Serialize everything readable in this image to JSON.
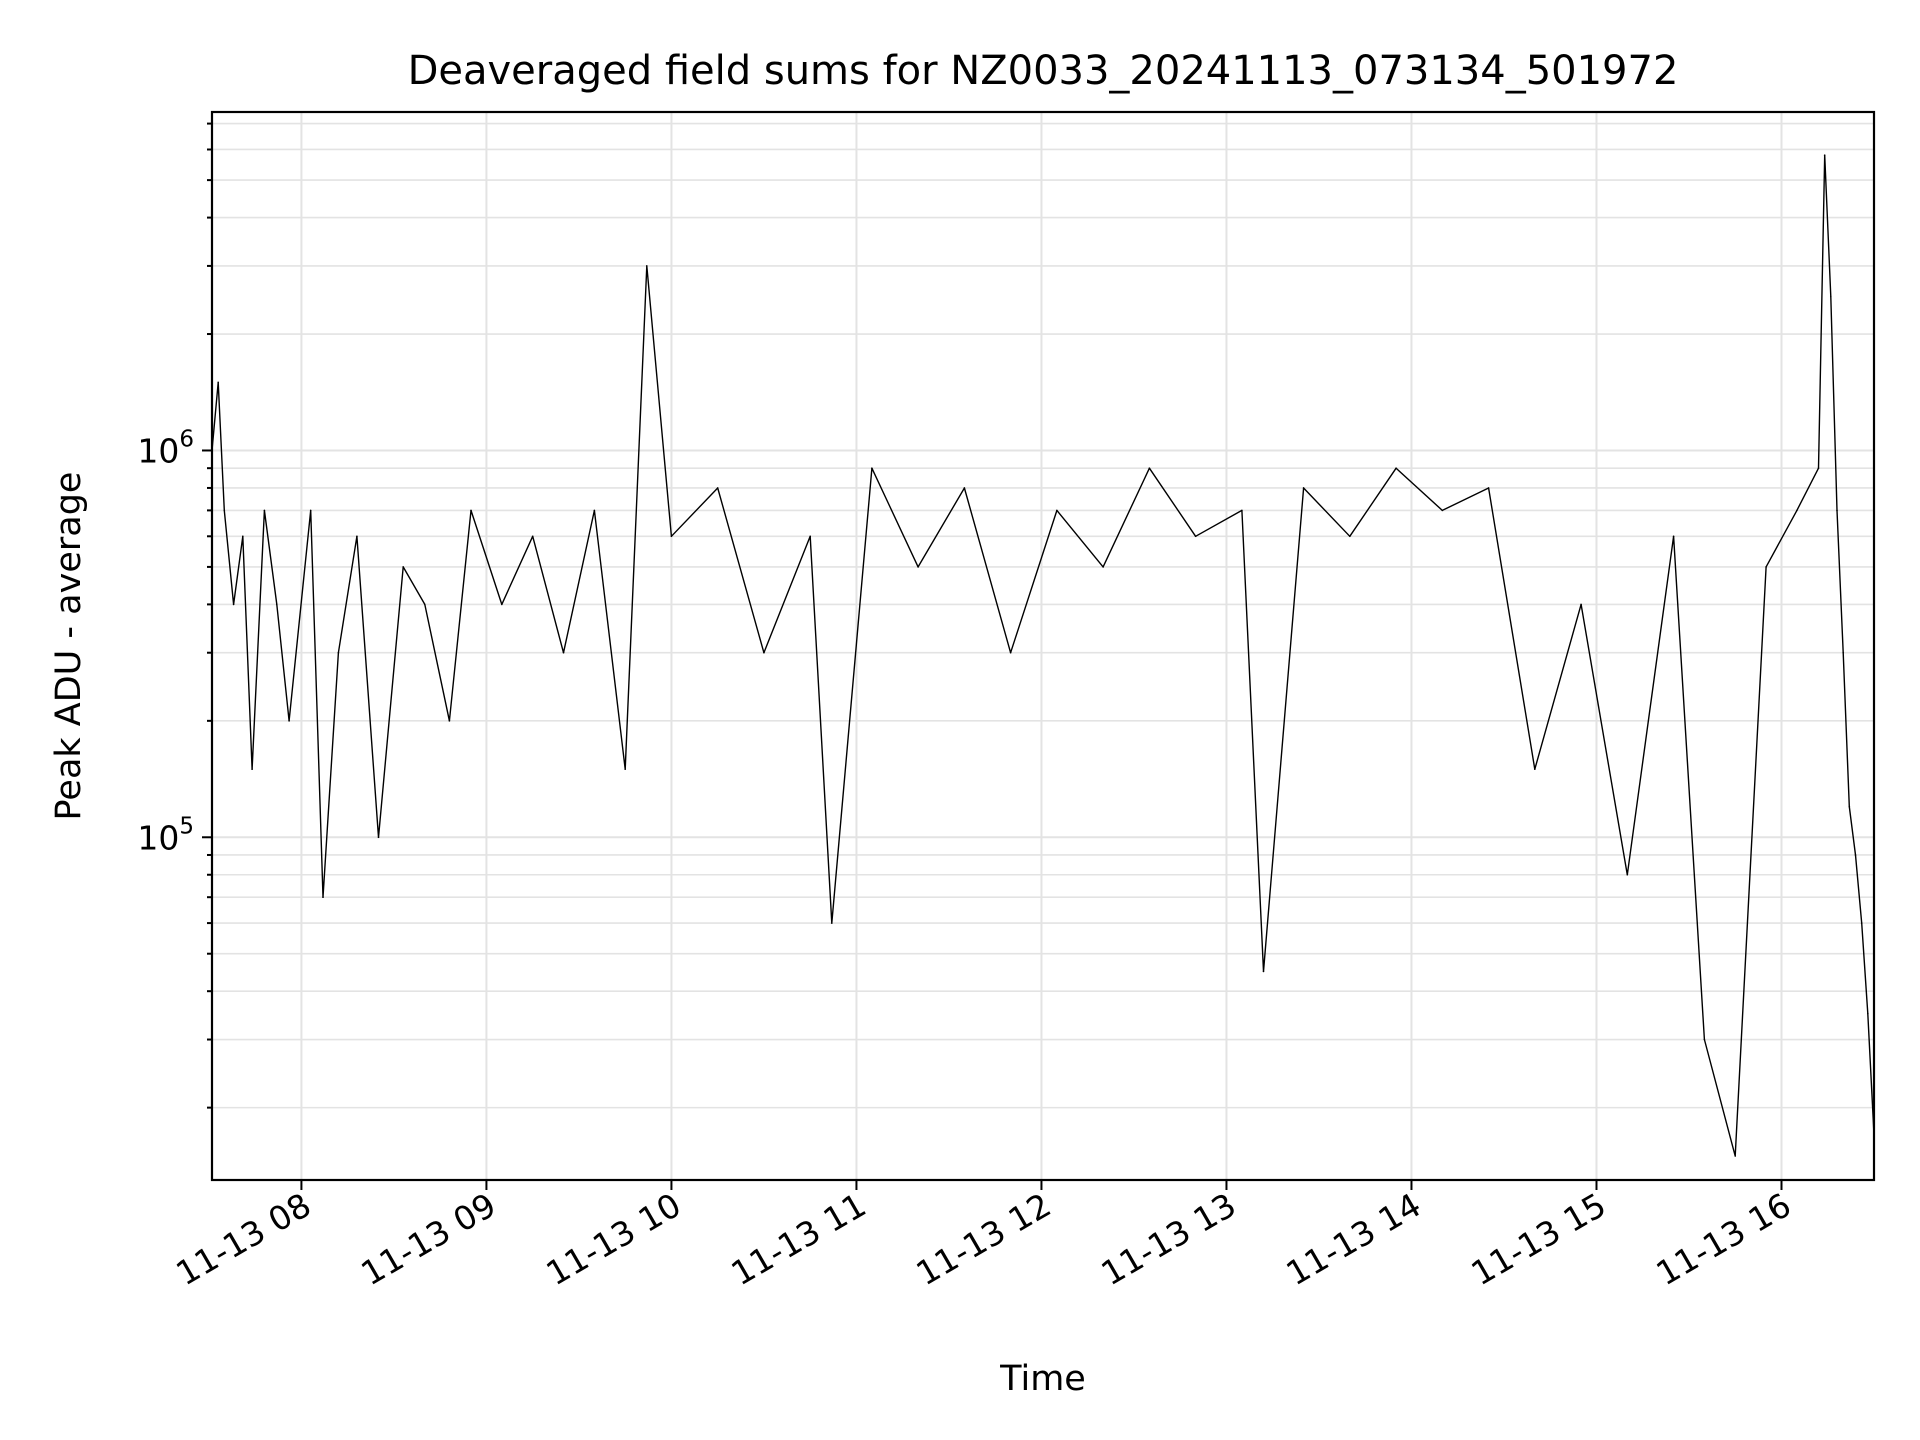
{
  "chart_data": {
    "type": "line",
    "title": "Deaveraged field sums for NZ0033_20241113_073134_501972",
    "xlabel": "Time",
    "ylabel": "Peak ADU - average",
    "y_scale": "log",
    "ylim": [
      13000,
      7500000
    ],
    "xlim": [
      "2024-11-13 07:31",
      "2024-11-13 16:30"
    ],
    "grid": true,
    "line_color": "#000000",
    "x_tick_labels": [
      "11-13 08",
      "11-13 09",
      "11-13 10",
      "11-13 11",
      "11-13 12",
      "11-13 13",
      "11-13 14",
      "11-13 15",
      "11-13 16"
    ],
    "x_ticks": [
      "2024-11-13 08:00",
      "2024-11-13 09:00",
      "2024-11-13 10:00",
      "2024-11-13 11:00",
      "2024-11-13 12:00",
      "2024-11-13 13:00",
      "2024-11-13 14:00",
      "2024-11-13 15:00",
      "2024-11-13 16:00"
    ],
    "y_tick_labels": [
      {
        "value": 100000,
        "base": "10",
        "exp": "5"
      },
      {
        "value": 1000000,
        "base": "10",
        "exp": "6"
      }
    ],
    "series": [
      {
        "values_description_note": null,
        "x": [
          "2024-11-13 07:31",
          "2024-11-13 07:33",
          "2024-11-13 07:35",
          "2024-11-13 07:38",
          "2024-11-13 07:41",
          "2024-11-13 07:44",
          "2024-11-13 07:48",
          "2024-11-13 07:52",
          "2024-11-13 07:56",
          "2024-11-13 08:03",
          "2024-11-13 08:07",
          "2024-11-13 08:12",
          "2024-11-13 08:18",
          "2024-11-13 08:25",
          "2024-11-13 08:33",
          "2024-11-13 08:40",
          "2024-11-13 08:48",
          "2024-11-13 08:55",
          "2024-11-13 09:05",
          "2024-11-13 09:15",
          "2024-11-13 09:25",
          "2024-11-13 09:35",
          "2024-11-13 09:45",
          "2024-11-13 09:52",
          "2024-11-13 10:00",
          "2024-11-13 10:15",
          "2024-11-13 10:30",
          "2024-11-13 10:45",
          "2024-11-13 10:52",
          "2024-11-13 11:05",
          "2024-11-13 11:20",
          "2024-11-13 11:35",
          "2024-11-13 11:50",
          "2024-11-13 12:05",
          "2024-11-13 12:20",
          "2024-11-13 12:35",
          "2024-11-13 12:50",
          "2024-11-13 13:05",
          "2024-11-13 13:12",
          "2024-11-13 13:25",
          "2024-11-13 13:40",
          "2024-11-13 13:55",
          "2024-11-13 14:10",
          "2024-11-13 14:25",
          "2024-11-13 14:40",
          "2024-11-13 14:55",
          "2024-11-13 15:10",
          "2024-11-13 15:25",
          "2024-11-13 15:35",
          "2024-11-13 15:45",
          "2024-11-13 15:55",
          "2024-11-13 16:05",
          "2024-11-13 16:12",
          "2024-11-13 16:14",
          "2024-11-13 16:16",
          "2024-11-13 16:18",
          "2024-11-13 16:20",
          "2024-11-13 16:22",
          "2024-11-13 16:24",
          "2024-11-13 16:26",
          "2024-11-13 16:28",
          "2024-11-13 16:30"
        ],
        "values": [
          1000000,
          1500000,
          700000,
          400000,
          600000,
          150000,
          700000,
          400000,
          200000,
          700000,
          70000,
          300000,
          600000,
          100000,
          500000,
          400000,
          200000,
          700000,
          400000,
          600000,
          300000,
          700000,
          150000,
          3000000,
          600000,
          800000,
          300000,
          600000,
          60000,
          900000,
          500000,
          800000,
          300000,
          700000,
          500000,
          900000,
          600000,
          700000,
          45000,
          800000,
          600000,
          900000,
          700000,
          800000,
          150000,
          400000,
          80000,
          600000,
          30000,
          15000,
          500000,
          700000,
          900000,
          5800000,
          2500000,
          700000,
          300000,
          120000,
          90000,
          60000,
          35000,
          17000
        ]
      }
    ]
  }
}
